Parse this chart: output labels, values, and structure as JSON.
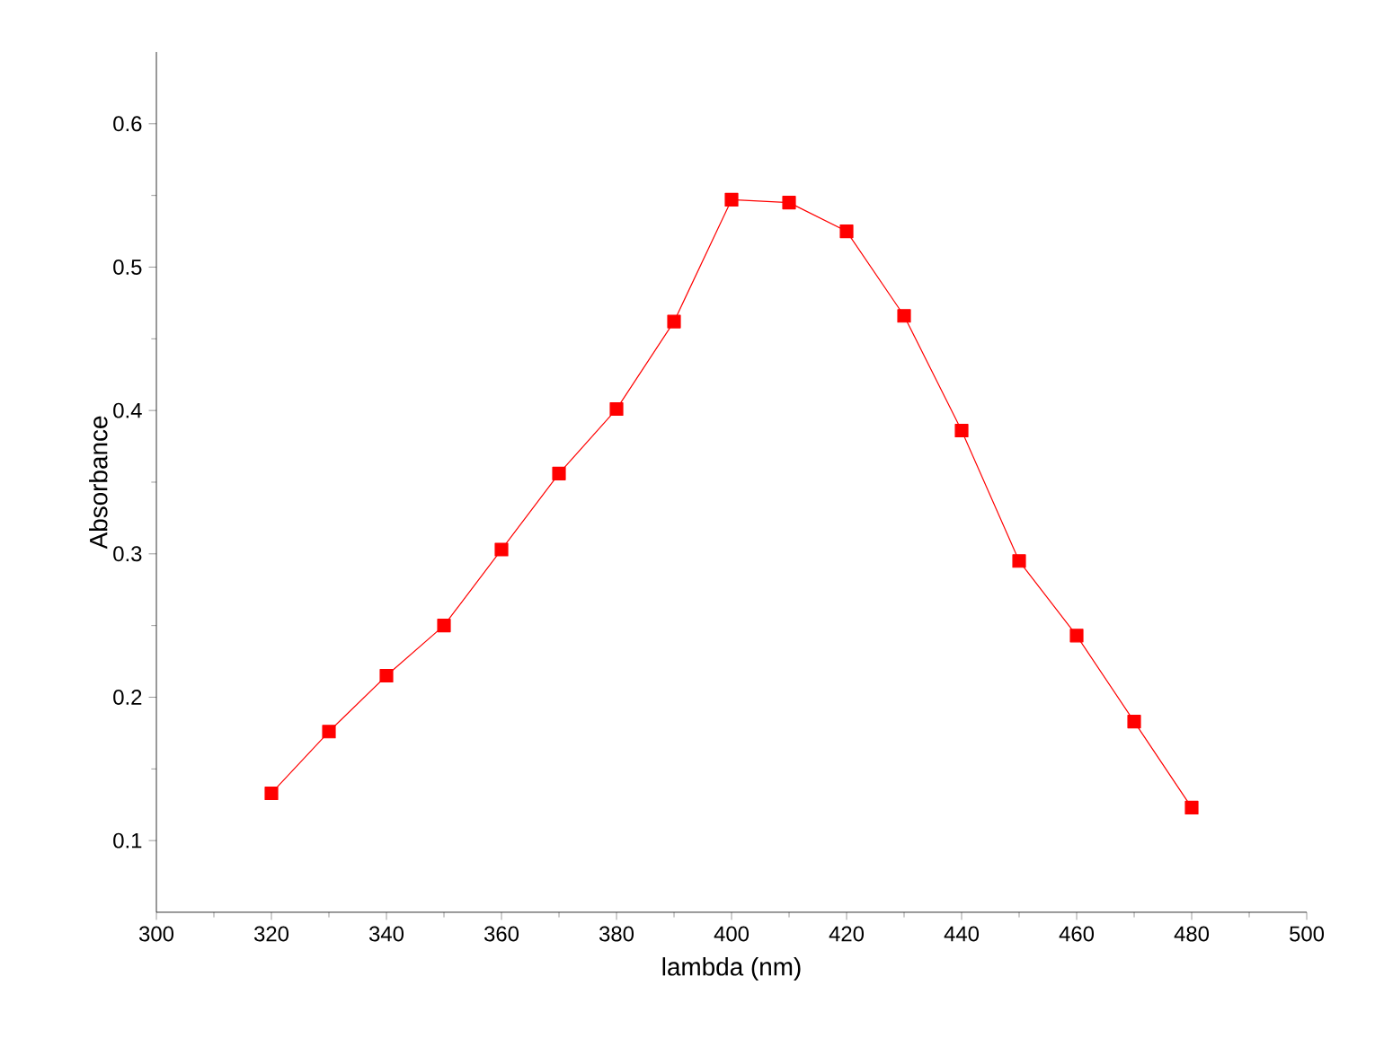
{
  "chart_data": {
    "type": "line",
    "xlabel": "lambda (nm)",
    "ylabel": "Absorbance",
    "x": [
      320,
      330,
      340,
      350,
      360,
      370,
      380,
      390,
      400,
      410,
      420,
      430,
      440,
      450,
      460,
      470,
      480
    ],
    "series": [
      {
        "color": "#ff0000",
        "values": [
          0.133,
          0.176,
          0.215,
          0.25,
          0.303,
          0.356,
          0.401,
          0.462,
          0.547,
          0.545,
          0.525,
          0.466,
          0.386,
          0.295,
          0.243,
          0.183,
          0.123
        ]
      }
    ],
    "xlim": [
      300,
      500
    ],
    "ylim": [
      0.05,
      0.65
    ],
    "xticks": [
      300,
      320,
      340,
      360,
      380,
      400,
      420,
      440,
      460,
      480,
      500
    ],
    "yticks": [
      0.1,
      0.2,
      0.3,
      0.4,
      0.5,
      0.6
    ],
    "marker": "square",
    "line_style": "solid"
  }
}
